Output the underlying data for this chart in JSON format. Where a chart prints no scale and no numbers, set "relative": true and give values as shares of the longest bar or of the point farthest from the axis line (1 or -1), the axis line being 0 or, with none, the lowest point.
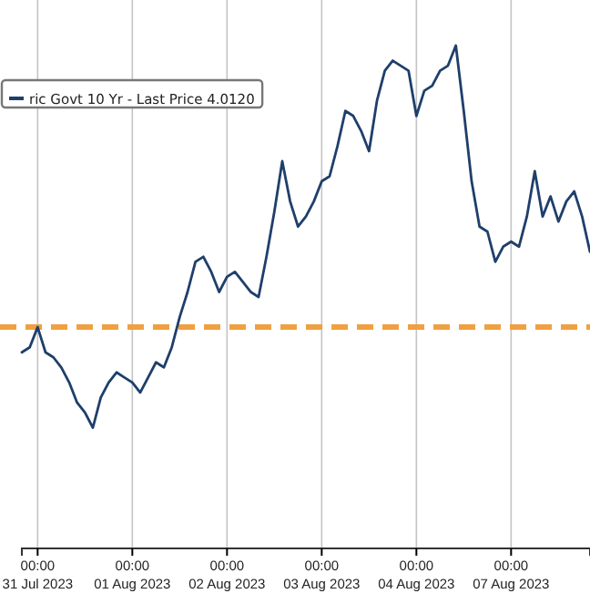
{
  "chart_data": {
    "type": "line",
    "relative": true,
    "grid": "x",
    "legend": "top left",
    "line_style": "solid",
    "marker": "none",
    "categories": [
      null,
      null,
      "00:00\n31 Jul 2023",
      null,
      null,
      null,
      null,
      null,
      null,
      null,
      null,
      null,
      null,
      null,
      "00:00\n01 Aug 2023",
      null,
      null,
      null,
      null,
      null,
      null,
      null,
      null,
      null,
      null,
      null,
      "00:00\n02 Aug 2023",
      null,
      null,
      null,
      null,
      null,
      null,
      null,
      null,
      null,
      null,
      null,
      "00:00\n03 Aug 2023",
      null,
      null,
      null,
      null,
      null,
      null,
      null,
      null,
      null,
      null,
      null,
      "00:00\n04 Aug 2023",
      null,
      null,
      null,
      null,
      null,
      null,
      null,
      null,
      null,
      null,
      null,
      "00:00\n07 Aug 2023",
      null,
      null,
      null,
      null,
      null,
      null,
      null,
      null,
      null,
      null
    ],
    "ref_lines": [
      {
        "axis": "y",
        "value": 0.44,
        "color": "#f0a040",
        "line_style": "dashed"
      }
    ],
    "series": [
      {
        "name": "ric Govt 10 Yr - Last Price 4.0120",
        "color": "#1f3f6b",
        "values": [
          0.39,
          0.4,
          0.44,
          0.39,
          0.38,
          0.36,
          0.33,
          0.29,
          0.27,
          0.24,
          0.3,
          0.33,
          0.35,
          0.34,
          0.33,
          0.31,
          0.34,
          0.37,
          0.36,
          0.4,
          0.46,
          0.51,
          0.57,
          0.58,
          0.55,
          0.51,
          0.54,
          0.55,
          0.53,
          0.51,
          0.5,
          0.58,
          0.67,
          0.77,
          0.69,
          0.64,
          0.66,
          0.69,
          0.73,
          0.74,
          0.8,
          0.87,
          0.86,
          0.83,
          0.79,
          0.89,
          0.95,
          0.97,
          0.96,
          0.95,
          0.86,
          0.91,
          0.92,
          0.95,
          0.96,
          1,
          0.87,
          0.73,
          0.64,
          0.63,
          0.57,
          0.6,
          0.61,
          0.6,
          0.66,
          0.75,
          0.66,
          0.7,
          0.65,
          0.69,
          0.71,
          0.66,
          0.59
        ]
      }
    ]
  }
}
